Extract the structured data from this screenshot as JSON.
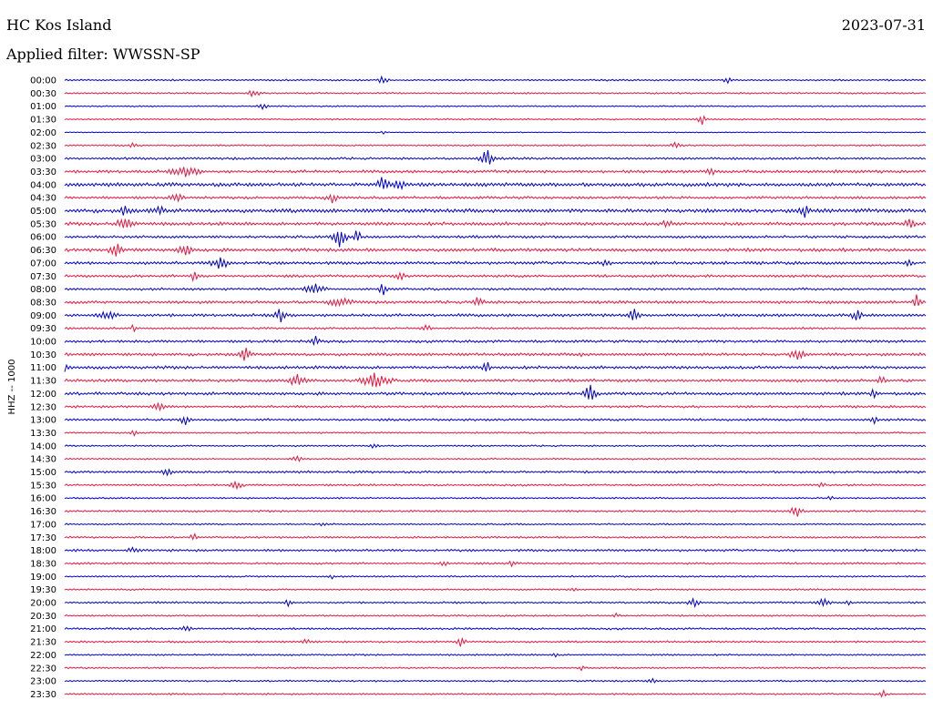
{
  "header": {
    "station": "HC Kos Island",
    "date": "2023-07-31",
    "filter": "Applied filter: WWSSN-SP"
  },
  "colors": {
    "trace_a": "#0000cc",
    "trace_b": "#e8163f",
    "text": "#000000",
    "background": "#ffffff"
  },
  "chart_data": {
    "type": "line",
    "ylabel": "HHZ -- 1000",
    "legend": "none",
    "grid": false,
    "row_labels": [
      "00:00",
      "00:30",
      "01:00",
      "01:30",
      "02:00",
      "02:30",
      "03:00",
      "03:30",
      "04:00",
      "04:30",
      "05:00",
      "05:30",
      "06:00",
      "06:30",
      "07:00",
      "07:30",
      "08:00",
      "08:30",
      "09:00",
      "09:30",
      "10:00",
      "10:30",
      "11:00",
      "11:30",
      "12:00",
      "12:30",
      "13:00",
      "13:30",
      "14:00",
      "14:30",
      "15:00",
      "15:30",
      "16:00",
      "16:30",
      "17:00",
      "17:30",
      "18:00",
      "18:30",
      "19:00",
      "19:30",
      "20:00",
      "20:30",
      "21:00",
      "21:30",
      "22:00",
      "22:30",
      "23:00",
      "23:30"
    ],
    "noise": [
      1.0,
      1.0,
      0.8,
      0.9,
      0.6,
      1.0,
      1.4,
      1.8,
      2.2,
      1.6,
      2.4,
      2.0,
      1.6,
      2.0,
      1.8,
      1.6,
      1.4,
      1.8,
      1.8,
      1.2,
      1.6,
      1.8,
      1.8,
      1.8,
      1.8,
      1.4,
      1.4,
      1.0,
      1.0,
      1.0,
      1.4,
      1.2,
      1.0,
      1.2,
      1.0,
      1.2,
      1.4,
      1.2,
      1.0,
      1.0,
      1.2,
      1.0,
      1.2,
      1.2,
      1.0,
      1.0,
      1.0,
      1.0
    ],
    "events": [
      [
        [
          0.37,
          5,
          8
        ],
        [
          0.77,
          4,
          8
        ]
      ],
      [
        [
          0.22,
          5,
          10
        ]
      ],
      [
        [
          0.23,
          3,
          8
        ]
      ],
      [
        [
          0.74,
          6,
          8
        ]
      ],
      [
        [
          0.37,
          2,
          6
        ]
      ],
      [
        [
          0.71,
          4,
          10
        ],
        [
          0.08,
          3,
          8
        ]
      ],
      [
        [
          0.49,
          10,
          12
        ]
      ],
      [
        [
          0.14,
          5,
          26
        ],
        [
          0.75,
          5,
          8
        ]
      ],
      [
        [
          0.37,
          8,
          12
        ],
        [
          0.39,
          6,
          10
        ]
      ],
      [
        [
          0.13,
          5,
          10
        ],
        [
          0.31,
          5,
          10
        ]
      ],
      [
        [
          0.86,
          8,
          10
        ],
        [
          0.07,
          6,
          8
        ],
        [
          0.11,
          5,
          10
        ]
      ],
      [
        [
          0.07,
          6,
          18
        ],
        [
          0.98,
          5,
          12
        ],
        [
          0.7,
          4,
          8
        ]
      ],
      [
        [
          0.32,
          12,
          12
        ],
        [
          0.34,
          10,
          6
        ]
      ],
      [
        [
          0.06,
          6,
          14
        ],
        [
          0.14,
          6,
          14
        ]
      ],
      [
        [
          0.18,
          8,
          14
        ],
        [
          0.63,
          4,
          8
        ],
        [
          0.98,
          6,
          6
        ]
      ],
      [
        [
          0.15,
          5,
          8
        ],
        [
          0.39,
          4,
          10
        ]
      ],
      [
        [
          0.29,
          6,
          18
        ],
        [
          0.37,
          6,
          8
        ]
      ],
      [
        [
          0.32,
          5,
          22
        ],
        [
          0.48,
          6,
          10
        ],
        [
          0.99,
          10,
          6
        ]
      ],
      [
        [
          0.25,
          8,
          10
        ],
        [
          0.66,
          8,
          10
        ],
        [
          0.05,
          5,
          16
        ],
        [
          0.92,
          6,
          10
        ]
      ],
      [
        [
          0.08,
          5,
          4
        ],
        [
          0.42,
          4,
          10
        ]
      ],
      [
        [
          0.29,
          7,
          8
        ]
      ],
      [
        [
          0.21,
          7,
          12
        ],
        [
          0.85,
          5,
          14
        ],
        [
          0.6,
          4,
          4
        ]
      ],
      [
        [
          0.49,
          7,
          6
        ],
        [
          0.0,
          5,
          8
        ]
      ],
      [
        [
          0.27,
          9,
          14
        ],
        [
          0.36,
          8,
          26
        ],
        [
          0.95,
          5,
          8
        ]
      ],
      [
        [
          0.61,
          9,
          12
        ],
        [
          0.94,
          7,
          6
        ]
      ],
      [
        [
          0.11,
          5,
          14
        ]
      ],
      [
        [
          0.14,
          5,
          10
        ],
        [
          0.94,
          4,
          6
        ]
      ],
      [
        [
          0.08,
          3,
          6
        ]
      ],
      [
        [
          0.36,
          3,
          8
        ]
      ],
      [
        [
          0.27,
          3,
          10
        ]
      ],
      [
        [
          0.12,
          3,
          10
        ]
      ],
      [
        [
          0.2,
          4,
          12
        ],
        [
          0.88,
          3,
          6
        ]
      ],
      [
        [
          0.89,
          3,
          6
        ]
      ],
      [
        [
          0.85,
          6,
          12
        ]
      ],
      [
        [
          0.3,
          2,
          6
        ]
      ],
      [
        [
          0.15,
          4,
          6
        ]
      ],
      [
        [
          0.08,
          3,
          10
        ]
      ],
      [
        [
          0.44,
          3,
          8
        ],
        [
          0.52,
          3,
          8
        ]
      ],
      [
        [
          0.31,
          2,
          6
        ]
      ],
      [
        [
          0.59,
          2,
          6
        ]
      ],
      [
        [
          0.26,
          4,
          6
        ],
        [
          0.73,
          5,
          10
        ],
        [
          0.88,
          5,
          12
        ],
        [
          0.91,
          4,
          6
        ]
      ],
      [
        [
          0.64,
          3,
          6
        ]
      ],
      [
        [
          0.14,
          3,
          12
        ]
      ],
      [
        [
          0.46,
          6,
          8
        ],
        [
          0.28,
          3,
          10
        ]
      ],
      [
        [
          0.57,
          2,
          6
        ]
      ],
      [
        [
          0.6,
          2,
          6
        ]
      ],
      [
        [
          0.68,
          3,
          10
        ]
      ],
      [
        [
          0.95,
          4,
          6
        ]
      ]
    ]
  }
}
